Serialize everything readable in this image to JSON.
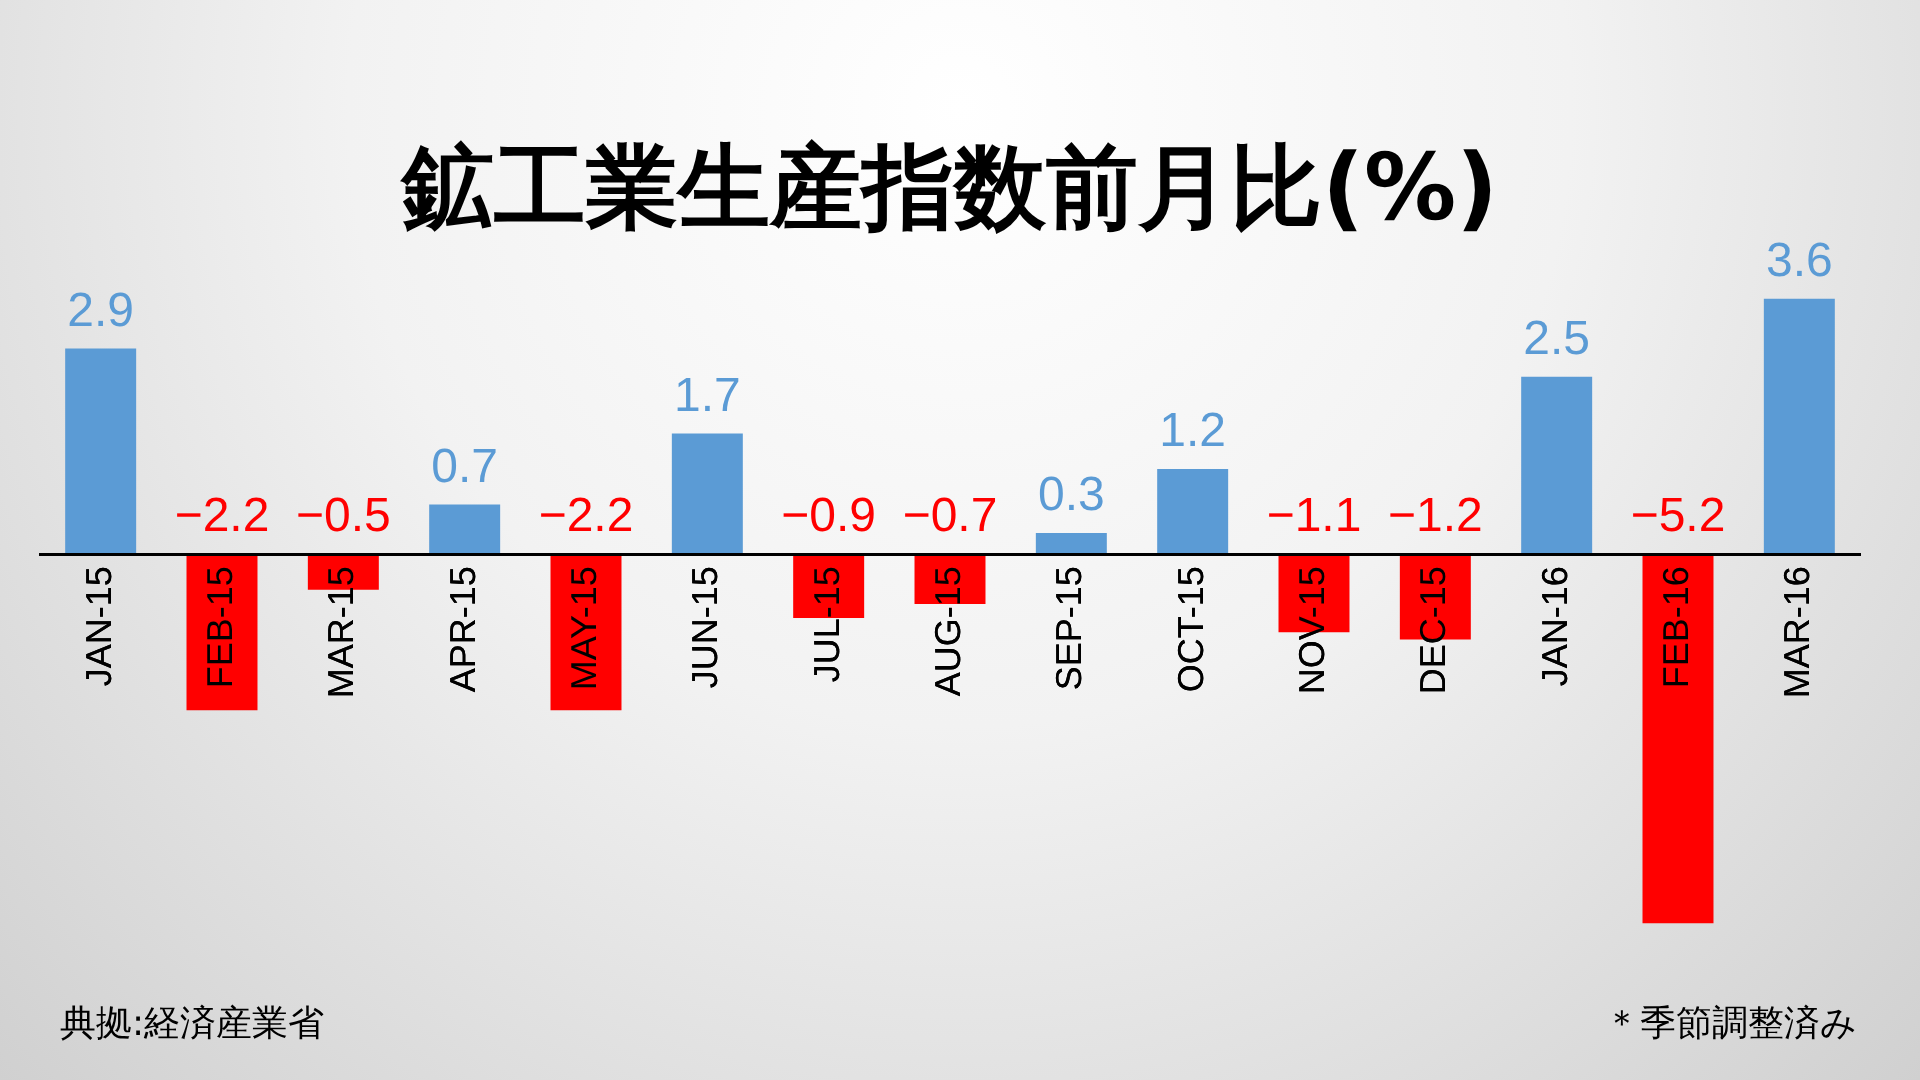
{
  "chart_data": {
    "type": "bar",
    "title": "鉱工業生産指数前月比(%)",
    "categories": [
      "JAN-15",
      "FEB-15",
      "MAR-15",
      "APR-15",
      "MAY-15",
      "JUN-15",
      "JUL-15",
      "AUG-15",
      "SEP-15",
      "OCT-15",
      "NOV-15",
      "DEC-15",
      "JAN-16",
      "FEB-16",
      "MAR-16"
    ],
    "values": [
      2.9,
      -2.2,
      -0.5,
      0.7,
      -2.2,
      1.7,
      -0.9,
      -0.7,
      0.3,
      1.2,
      -1.1,
      -1.2,
      2.5,
      -5.2,
      3.6
    ],
    "value_labels": [
      "2.9",
      "−2.2",
      "−0.5",
      "0.7",
      "−2.2",
      "1.7",
      "−0.9",
      "−0.7",
      "0.3",
      "1.2",
      "−1.1",
      "−1.2",
      "2.5",
      "−5.2",
      "3.6"
    ],
    "colors": [
      "#5b9bd5",
      "#ff0000",
      "#ff0000",
      "#5b9bd5",
      "#ff0000",
      "#5b9bd5",
      "#ff0000",
      "#ff0000",
      "#5b9bd5",
      "#5b9bd5",
      "#ff0000",
      "#ff0000",
      "#5b9bd5",
      "#ff0000",
      "#5b9bd5"
    ],
    "annotations": [
      "典拠:経済産業省",
      "＊季節調整済み"
    ]
  }
}
